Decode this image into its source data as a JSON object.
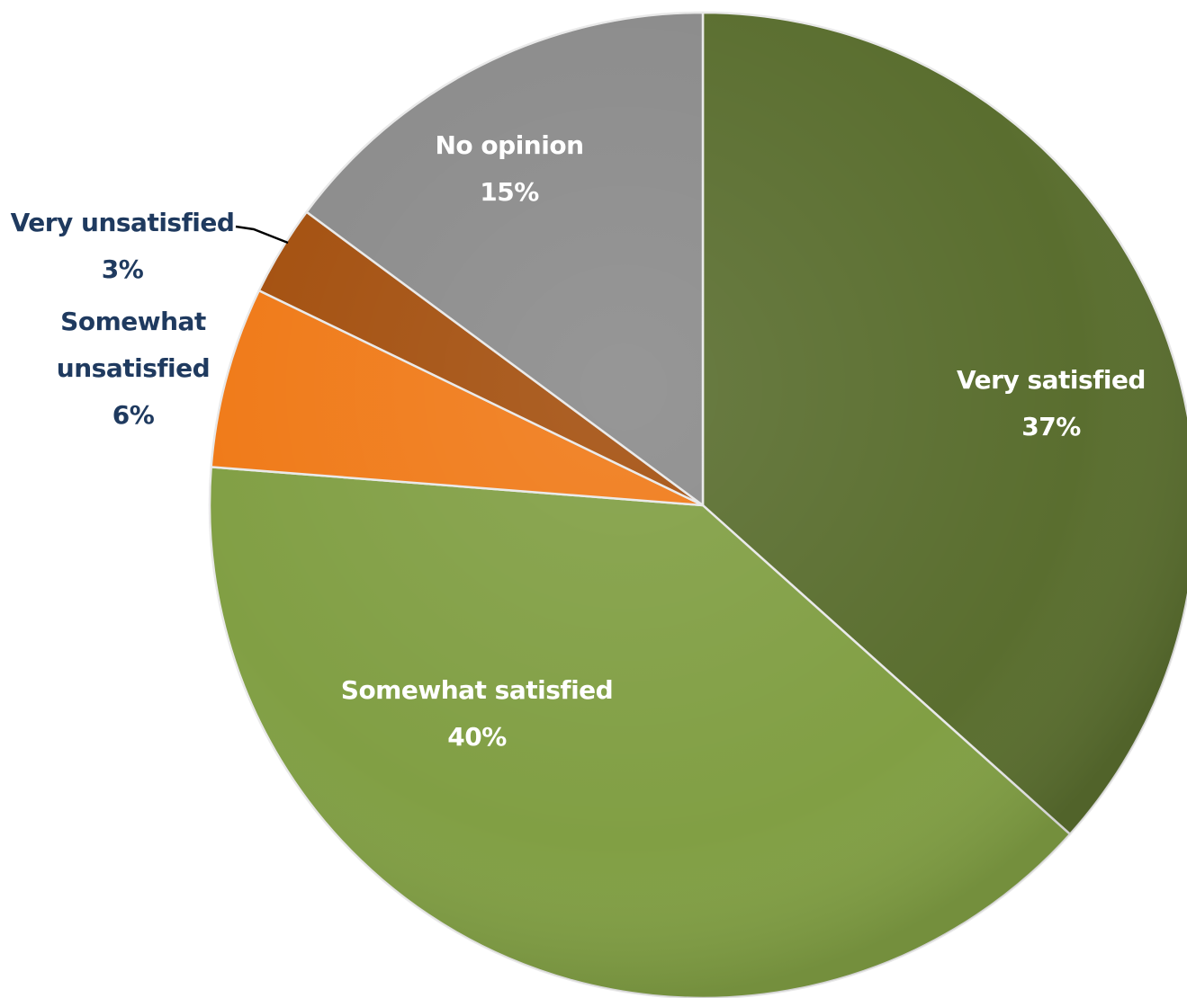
{
  "chart_data": {
    "type": "pie",
    "title": "",
    "slices": [
      {
        "label": "Very satisfied",
        "value": 37,
        "value_label": "37%",
        "color": "#5a6e2f"
      },
      {
        "label": "Somewhat satisfied",
        "value": 40,
        "value_label": "40%",
        "color": "#819f44"
      },
      {
        "label": "Somewhat unsatisfied",
        "label_lines": [
          "Somewhat",
          "unsatisfied"
        ],
        "value": 6,
        "value_label": "6%",
        "color": "#f07a18"
      },
      {
        "label": "Very unsatisfied",
        "value": 3,
        "value_label": "3%",
        "color": "#a4500f"
      },
      {
        "label": "No opinion",
        "value": 15,
        "value_label": "15%",
        "color": "#8b8b8b"
      }
    ],
    "start_angle": "12 o'clock",
    "direction": "clockwise",
    "legend": "none",
    "label_text_colors": {
      "inside": "#ffffff",
      "outside": "#1f3a5f"
    }
  }
}
